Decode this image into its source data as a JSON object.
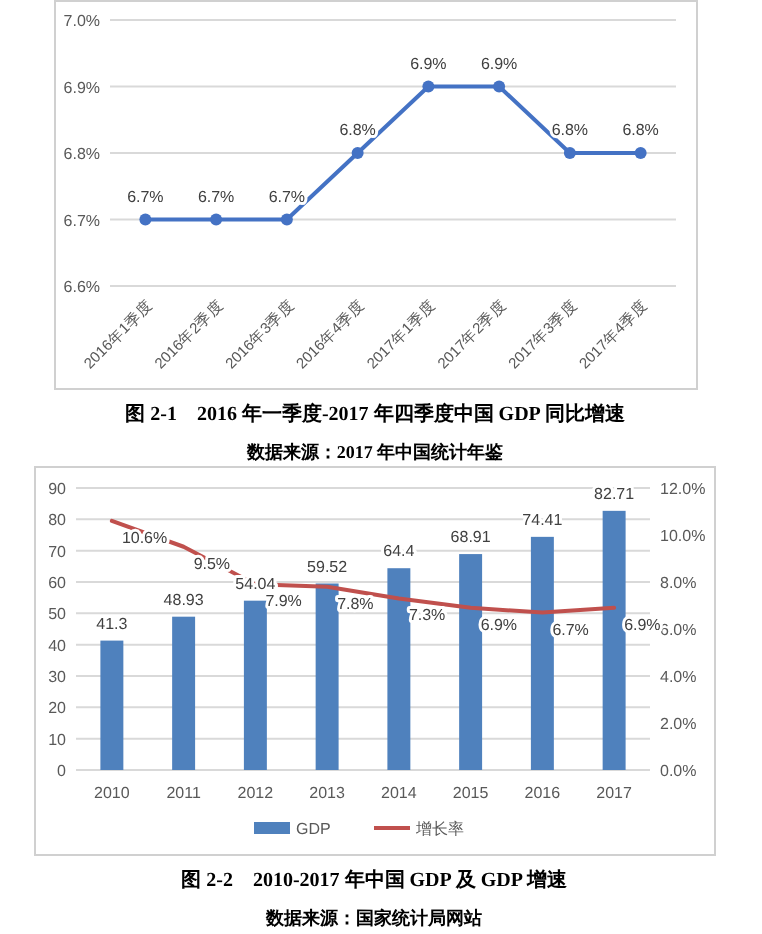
{
  "chart_data": [
    {
      "type": "line",
      "title": "图 2-1　2016 年一季度-2017 年四季度中国 GDP 同比增速",
      "annotations": [
        "数据来源：2017 年中国统计年鉴"
      ],
      "categories": [
        "2016年1季度",
        "2016年2季度",
        "2016年3季度",
        "2016年4季度",
        "2017年1季度",
        "2017年2季度",
        "2017年3季度",
        "2017年4季度"
      ],
      "values": [
        6.7,
        6.7,
        6.7,
        6.8,
        6.9,
        6.9,
        6.8,
        6.8
      ],
      "value_labels": [
        "6.7%",
        "6.7%",
        "6.7%",
        "6.8%",
        "6.9%",
        "6.9%",
        "6.8%",
        "6.8%"
      ],
      "color": "#4472c4",
      "ylim": [
        6.6,
        7.0
      ],
      "yticks": [
        {
          "value": 6.6,
          "label": "6.6%"
        },
        {
          "value": 6.7,
          "label": "6.7%"
        },
        {
          "value": 6.8,
          "label": "6.8%"
        },
        {
          "value": 6.9,
          "label": "6.9%"
        },
        {
          "value": 7.0,
          "label": "7.0%"
        }
      ],
      "grid": "y",
      "marker": "circle",
      "line_style": "solid"
    },
    {
      "type": "bar",
      "title": "图 2-2　2010-2017 年中国 GDP 及 GDP 增速",
      "annotations": [
        "数据来源：国家统计局网站"
      ],
      "categories": [
        "2010",
        "2011",
        "2012",
        "2013",
        "2014",
        "2015",
        "2016",
        "2017"
      ],
      "series": [
        {
          "name": "GDP",
          "type": "bar",
          "color": "#4f81bd",
          "values": [
            41.3,
            48.93,
            54.04,
            59.52,
            64.4,
            68.91,
            74.41,
            82.71
          ],
          "value_labels": [
            "41.3",
            "48.93",
            "54.04",
            "59.52",
            "64.4",
            "68.91",
            "74.41",
            "82.71"
          ]
        },
        {
          "name": "增长率",
          "type": "line",
          "axis": "y2",
          "color": "#c0504d",
          "values": [
            10.6,
            9.5,
            7.9,
            7.8,
            7.3,
            6.9,
            6.7,
            6.9
          ],
          "value_labels": [
            "10.6%",
            "9.5%",
            "7.9%",
            "7.8%",
            "7.3%",
            "6.9%",
            "6.7%",
            "6.9%"
          ]
        }
      ],
      "ylim": [
        0,
        90
      ],
      "yticks": [
        0,
        10,
        20,
        30,
        40,
        50,
        60,
        70,
        80,
        90
      ],
      "y2lim": [
        0,
        12
      ],
      "y2ticks": [
        {
          "value": 0,
          "label": "0.0%"
        },
        {
          "value": 2,
          "label": "2.0%"
        },
        {
          "value": 4,
          "label": "4.0%"
        },
        {
          "value": 6,
          "label": "6.0%"
        },
        {
          "value": 8,
          "label": "8.0%"
        },
        {
          "value": 10,
          "label": "10.0%"
        },
        {
          "value": 12,
          "label": "12.0%"
        }
      ],
      "grid": "y",
      "legend": "bottom",
      "marker": "none",
      "line_style": "solid"
    }
  ]
}
